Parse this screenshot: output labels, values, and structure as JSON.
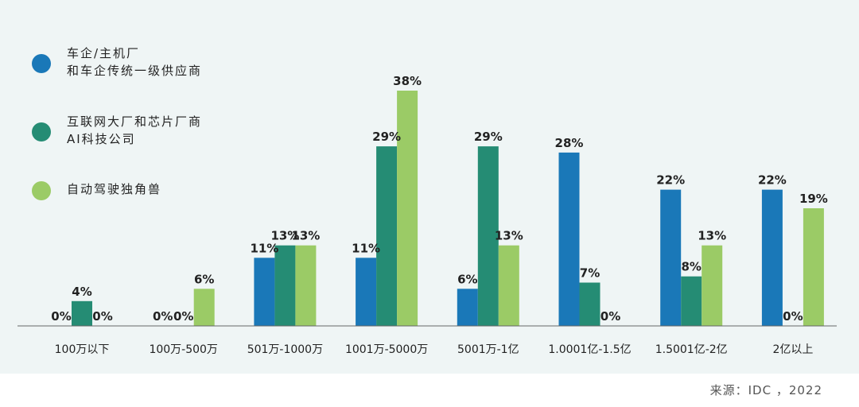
{
  "chart_data": {
    "type": "bar",
    "categories": [
      "100万以下",
      "100万-500万",
      "501万-1000万",
      "1001万-5000万",
      "5001万-1亿",
      "1.0001亿-1.5亿",
      "1.5001亿-2亿",
      "2亿以上"
    ],
    "series": [
      {
        "name": "车企/主机厂\n和车企传统一级供应商",
        "color": "#1a78b8",
        "values": [
          0,
          0,
          11,
          11,
          6,
          28,
          22,
          22
        ]
      },
      {
        "name": "互联网大厂和芯片厂商\nAI科技公司",
        "color": "#258c74",
        "values": [
          4,
          0,
          13,
          29,
          29,
          7,
          8,
          0
        ]
      },
      {
        "name": "自动驾驶独角兽",
        "color": "#9bcb66",
        "values": [
          0,
          6,
          13,
          38,
          13,
          0,
          13,
          19
        ]
      }
    ],
    "value_suffix": "%",
    "ylim": [
      0,
      38
    ],
    "grid": false,
    "legend_position": "left"
  },
  "source": "来源：IDC ，2022",
  "colors": {
    "background": "#eff5f5",
    "axis": "#666666"
  }
}
